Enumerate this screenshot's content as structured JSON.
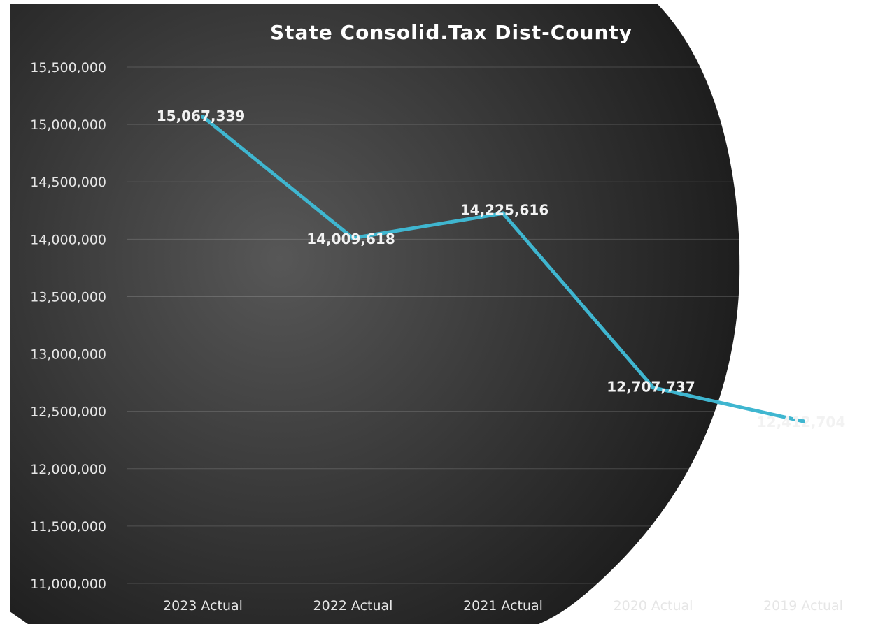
{
  "chart_data": {
    "type": "line",
    "title": "State Consolid.Tax Dist-County",
    "xlabel": "",
    "ylabel": "",
    "categories": [
      "2023 Actual",
      "2022 Actual",
      "2021 Actual",
      "2020 Actual",
      "2019 Actual"
    ],
    "series": [
      {
        "values": [
          15067339,
          14009618,
          14225616,
          12707737,
          12412704
        ],
        "data_labels": [
          "15,067,339",
          "14,009,618",
          "14,225,616",
          "12,707,737",
          "12,412,704"
        ]
      }
    ],
    "ylim": [
      11000000,
      15500000
    ],
    "y_ticks": [
      11000000,
      11500000,
      12000000,
      12500000,
      13000000,
      13500000,
      14000000,
      14500000,
      15000000,
      15500000
    ],
    "y_tick_labels": [
      "11,000,000",
      "11,500,000",
      "12,000,000",
      "12,500,000",
      "13,000,000",
      "13,500,000",
      "14,000,000",
      "14,500,000",
      "15,000,000",
      "15,500,000"
    ],
    "grid": true,
    "legend": "none",
    "colors": {
      "line": "#3fb6d0",
      "background_center": "#575757",
      "background_edge": "#151515",
      "text": "#e6e6e6",
      "title": "#ffffff"
    }
  }
}
